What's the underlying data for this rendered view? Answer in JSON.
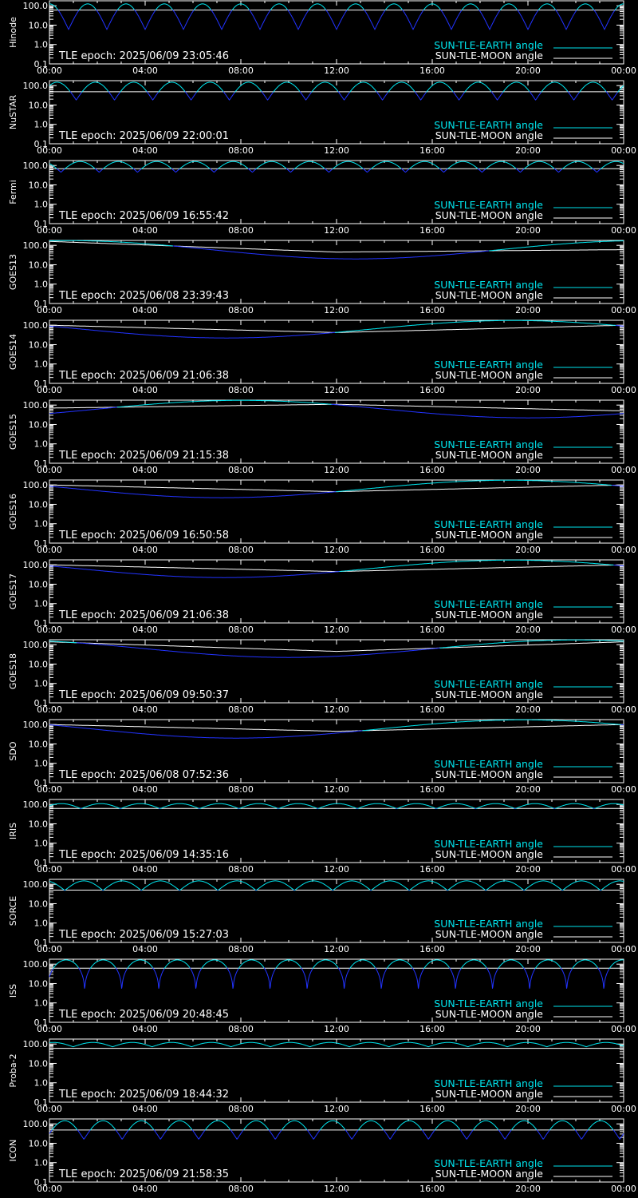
{
  "style": {
    "background": "#000000",
    "axis_color": "#ffffff",
    "earth_color": "#00e5ee",
    "moon_color": "#ffffff",
    "dip_color": "#2233ff"
  },
  "chart_data": [
    {
      "type": "line",
      "satellite": "Hinode",
      "epoch_label": "TLE epoch: 2025/06/09 23:05:46",
      "x_ticks": [
        "00:00",
        "04:00",
        "08:00",
        "12:00",
        "16:00",
        "20:00",
        "00:00"
      ],
      "y_ticks": [
        "0.1",
        "1.0",
        "10.0",
        "100.0"
      ],
      "ylim": [
        0.1,
        180
      ],
      "scale": "log",
      "legend": {
        "earth": "SUN-TLE-EARTH angle",
        "moon": "SUN-TLE-MOON angle"
      },
      "earth": {
        "mode": "orbit",
        "period_h": 1.6,
        "phase": 0.5,
        "max": 125,
        "floor": 80,
        "min": 6,
        "pow": 1.0
      },
      "moon": {
        "mode": "flat",
        "value": 60
      }
    },
    {
      "type": "line",
      "satellite": "NuSTAR",
      "epoch_label": "TLE epoch: 2025/06/09 22:00:01",
      "x_ticks": [
        "00:00",
        "04:00",
        "08:00",
        "12:00",
        "16:00",
        "20:00",
        "00:00"
      ],
      "y_ticks": [
        "0.1",
        "1.0",
        "10.0",
        "100.0"
      ],
      "ylim": [
        0.1,
        180
      ],
      "scale": "log",
      "legend": {
        "earth": "SUN-TLE-EARTH angle",
        "moon": "SUN-TLE-MOON angle"
      },
      "earth": {
        "mode": "orbit",
        "period_h": 1.6,
        "phase": 0.3,
        "max": 150,
        "floor": 70,
        "min": 18,
        "pow": 1.0
      },
      "moon": {
        "mode": "flat",
        "value": 48
      }
    },
    {
      "type": "line",
      "satellite": "Fermi",
      "epoch_label": "TLE epoch: 2025/06/09 16:55:42",
      "x_ticks": [
        "00:00",
        "04:00",
        "08:00",
        "12:00",
        "16:00",
        "20:00",
        "00:00"
      ],
      "y_ticks": [
        "0.1",
        "1.0",
        "10.0",
        "100.0"
      ],
      "ylim": [
        0.1,
        180
      ],
      "scale": "log",
      "legend": {
        "earth": "SUN-TLE-EARTH angle",
        "moon": "SUN-TLE-MOON angle"
      },
      "earth": {
        "mode": "orbit",
        "period_h": 1.6,
        "phase": 0.7,
        "max": 160,
        "floor": 90,
        "min": 45,
        "pow": 1.0
      },
      "moon": {
        "mode": "flat",
        "value": 68
      }
    },
    {
      "type": "line",
      "satellite": "GOES13",
      "epoch_label": "TLE epoch: 2025/06/08 23:39:43",
      "x_ticks": [
        "00:00",
        "04:00",
        "08:00",
        "12:00",
        "16:00",
        "20:00",
        "00:00"
      ],
      "y_ticks": [
        "0.1",
        "1.0",
        "10.0",
        "100.0"
      ],
      "ylim": [
        0.1,
        180
      ],
      "scale": "log",
      "legend": {
        "earth": "SUN-TLE-EARTH angle",
        "moon": "SUN-TLE-MOON angle"
      },
      "earth": {
        "mode": "geo",
        "center_h": 12.8,
        "max": 175,
        "min": 20
      },
      "moon": {
        "mode": "ramp",
        "start": 160,
        "end": 60,
        "mid": 45
      }
    },
    {
      "type": "line",
      "satellite": "GOES14",
      "epoch_label": "TLE epoch: 2025/06/09 21:06:38",
      "x_ticks": [
        "00:00",
        "04:00",
        "08:00",
        "12:00",
        "16:00",
        "20:00",
        "00:00"
      ],
      "y_ticks": [
        "0.1",
        "1.0",
        "10.0",
        "100.0"
      ],
      "ylim": [
        0.1,
        180
      ],
      "scale": "log",
      "legend": {
        "earth": "SUN-TLE-EARTH angle",
        "moon": "SUN-TLE-MOON angle"
      },
      "earth": {
        "mode": "geo",
        "center_h": 7.4,
        "max": 175,
        "min": 22
      },
      "moon": {
        "mode": "ramp",
        "start": 100,
        "end": 100,
        "mid": 42
      }
    },
    {
      "type": "line",
      "satellite": "GOES15",
      "epoch_label": "TLE epoch: 2025/06/09 21:15:38",
      "x_ticks": [
        "00:00",
        "04:00",
        "08:00",
        "12:00",
        "16:00",
        "20:00",
        "00:00"
      ],
      "y_ticks": [
        "0.1",
        "1.0",
        "10.0",
        "100.0"
      ],
      "ylim": [
        0.1,
        180
      ],
      "scale": "log",
      "legend": {
        "earth": "SUN-TLE-EARTH angle",
        "moon": "SUN-TLE-MOON angle"
      },
      "earth": {
        "mode": "geo",
        "center_h": 20.0,
        "max": 175,
        "min": 22
      },
      "moon": {
        "mode": "ramp",
        "start": 70,
        "end": 50,
        "mid": 110
      }
    },
    {
      "type": "line",
      "satellite": "GOES16",
      "epoch_label": "TLE epoch: 2025/06/09 16:50:58",
      "x_ticks": [
        "00:00",
        "04:00",
        "08:00",
        "12:00",
        "16:00",
        "20:00",
        "00:00"
      ],
      "y_ticks": [
        "0.1",
        "1.0",
        "10.0",
        "100.0"
      ],
      "ylim": [
        0.1,
        180
      ],
      "scale": "log",
      "legend": {
        "earth": "SUN-TLE-EARTH angle",
        "moon": "SUN-TLE-MOON angle"
      },
      "earth": {
        "mode": "geo",
        "center_h": 7.2,
        "max": 175,
        "min": 22
      },
      "moon": {
        "mode": "ramp",
        "start": 100,
        "end": 100,
        "mid": 45
      }
    },
    {
      "type": "line",
      "satellite": "GOES17",
      "epoch_label": "TLE epoch: 2025/06/09 21:06:38",
      "x_ticks": [
        "00:00",
        "04:00",
        "08:00",
        "12:00",
        "16:00",
        "20:00",
        "00:00"
      ],
      "y_ticks": [
        "0.1",
        "1.0",
        "10.0",
        "100.0"
      ],
      "ylim": [
        0.1,
        180
      ],
      "scale": "log",
      "legend": {
        "earth": "SUN-TLE-EARTH angle",
        "moon": "SUN-TLE-MOON angle"
      },
      "earth": {
        "mode": "geo",
        "center_h": 7.3,
        "max": 175,
        "min": 22
      },
      "moon": {
        "mode": "ramp",
        "start": 100,
        "end": 100,
        "mid": 45
      }
    },
    {
      "type": "line",
      "satellite": "GOES18",
      "epoch_label": "TLE epoch: 2025/06/09 09:50:37",
      "x_ticks": [
        "00:00",
        "04:00",
        "08:00",
        "12:00",
        "16:00",
        "20:00",
        "00:00"
      ],
      "y_ticks": [
        "0.1",
        "1.0",
        "10.0",
        "100.0"
      ],
      "ylim": [
        0.1,
        180
      ],
      "scale": "log",
      "legend": {
        "earth": "SUN-TLE-EARTH angle",
        "moon": "SUN-TLE-MOON angle"
      },
      "earth": {
        "mode": "geo",
        "center_h": 10.0,
        "max": 175,
        "min": 22
      },
      "moon": {
        "mode": "ramp",
        "start": 140,
        "end": 140,
        "mid": 45
      }
    },
    {
      "type": "line",
      "satellite": "SDO",
      "epoch_label": "TLE epoch: 2025/06/08 07:52:36",
      "x_ticks": [
        "00:00",
        "04:00",
        "08:00",
        "12:00",
        "16:00",
        "20:00",
        "00:00"
      ],
      "y_ticks": [
        "0.1",
        "1.0",
        "10.0",
        "100.0"
      ],
      "ylim": [
        0.1,
        180
      ],
      "scale": "log",
      "legend": {
        "earth": "SUN-TLE-EARTH angle",
        "moon": "SUN-TLE-MOON angle"
      },
      "earth": {
        "mode": "geo",
        "center_h": 7.8,
        "max": 175,
        "min": 20
      },
      "moon": {
        "mode": "ramp",
        "start": 100,
        "end": 100,
        "mid": 45
      }
    },
    {
      "type": "line",
      "satellite": "IRIS",
      "epoch_label": "TLE epoch: 2025/06/09 14:35:16",
      "x_ticks": [
        "00:00",
        "04:00",
        "08:00",
        "12:00",
        "16:00",
        "20:00",
        "00:00"
      ],
      "y_ticks": [
        "0.1",
        "1.0",
        "10.0",
        "100.0"
      ],
      "ylim": [
        0.1,
        180
      ],
      "scale": "log",
      "legend": {
        "earth": "SUN-TLE-EARTH angle",
        "moon": "SUN-TLE-MOON angle"
      },
      "earth": {
        "mode": "orbit",
        "period_h": 1.65,
        "phase": 0.2,
        "max": 110,
        "floor": 70,
        "min": 60,
        "pow": 1.0
      },
      "moon": {
        "mode": "flat",
        "value": 62
      }
    },
    {
      "type": "line",
      "satellite": "SORCE",
      "epoch_label": "TLE epoch: 2025/06/09 15:27:03",
      "x_ticks": [
        "00:00",
        "04:00",
        "08:00",
        "12:00",
        "16:00",
        "20:00",
        "00:00"
      ],
      "y_ticks": [
        "0.1",
        "1.0",
        "10.0",
        "100.0"
      ],
      "ylim": [
        0.1,
        180
      ],
      "scale": "log",
      "legend": {
        "earth": "SUN-TLE-EARTH angle",
        "moon": "SUN-TLE-MOON angle"
      },
      "earth": {
        "mode": "orbit",
        "period_h": 1.6,
        "phase": 0.6,
        "max": 150,
        "floor": 70,
        "min": 48,
        "pow": 1.0
      },
      "moon": {
        "mode": "flat",
        "value": 50
      }
    },
    {
      "type": "line",
      "satellite": "ISS",
      "epoch_label": "TLE epoch: 2025/06/09 20:48:45",
      "x_ticks": [
        "00:00",
        "04:00",
        "08:00",
        "12:00",
        "16:00",
        "20:00",
        "00:00"
      ],
      "y_ticks": [
        "0.1",
        "1.0",
        "10.0",
        "100.0"
      ],
      "ylim": [
        0.1,
        180
      ],
      "scale": "log",
      "legend": {
        "earth": "SUN-TLE-EARTH angle",
        "moon": "SUN-TLE-MOON angle"
      },
      "earth": {
        "mode": "orbit",
        "period_h": 1.55,
        "phase": 0.05,
        "max": 165,
        "floor": 60,
        "min": 2,
        "pow": 3.0
      },
      "moon": {
        "mode": "flat",
        "value": 62
      }
    },
    {
      "type": "line",
      "satellite": "Proba-2",
      "epoch_label": "TLE epoch: 2025/06/09 18:44:32",
      "x_ticks": [
        "00:00",
        "04:00",
        "08:00",
        "12:00",
        "16:00",
        "20:00",
        "00:00"
      ],
      "y_ticks": [
        "0.1",
        "1.0",
        "10.0",
        "100.0"
      ],
      "ylim": [
        0.1,
        180
      ],
      "scale": "log",
      "legend": {
        "earth": "SUN-TLE-EARTH angle",
        "moon": "SUN-TLE-MOON angle"
      },
      "earth": {
        "mode": "orbit",
        "period_h": 1.65,
        "phase": 0.4,
        "max": 120,
        "floor": 80,
        "min": 72,
        "pow": 1.0
      },
      "moon": {
        "mode": "flat",
        "value": 60
      }
    },
    {
      "type": "line",
      "satellite": "ICON",
      "epoch_label": "TLE epoch: 2025/06/09 21:58:35",
      "x_ticks": [
        "00:00",
        "04:00",
        "08:00",
        "12:00",
        "16:00",
        "20:00",
        "00:00"
      ],
      "y_ticks": [
        "0.1",
        "1.0",
        "10.0",
        "100.0"
      ],
      "ylim": [
        0.1,
        180
      ],
      "scale": "log",
      "legend": {
        "earth": "SUN-TLE-EARTH angle",
        "moon": "SUN-TLE-MOON angle"
      },
      "earth": {
        "mode": "orbit",
        "period_h": 1.6,
        "phase": 0.1,
        "max": 145,
        "floor": 75,
        "min": 16,
        "pow": 1.0
      },
      "moon": {
        "mode": "flat",
        "value": 48
      }
    }
  ]
}
